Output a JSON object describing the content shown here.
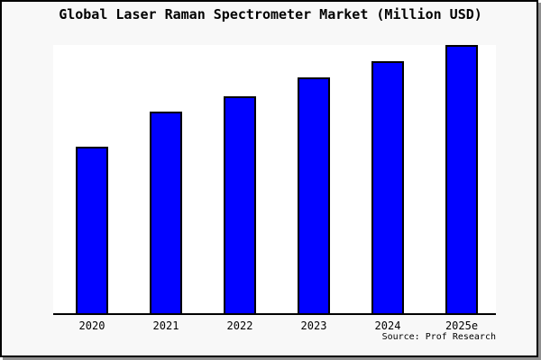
{
  "window": {
    "background": "#f8f8f8",
    "border_color": "#000000",
    "shadow_color": "#8f8f8f"
  },
  "chart": {
    "title": "Global Laser Raman Spectrometer Market (Million USD)",
    "source": "Source: Prof Research",
    "plot_background": "#ffffff",
    "bar_fill": "#0000ff",
    "bar_border": "#000000",
    "axis_color": "#000000"
  },
  "chart_data": {
    "type": "bar",
    "title": "Global Laser Raman Spectrometer Market (Million USD)",
    "categories": [
      "2020",
      "2021",
      "2022",
      "2023",
      "2024",
      "2025e"
    ],
    "values": [
      62,
      75,
      81,
      88,
      94,
      100
    ],
    "xlabel": "",
    "ylabel": "",
    "ylim": [
      0,
      100
    ],
    "grid": false,
    "legend": false,
    "y_axis_visible": false,
    "value_scale_note": "No y-axis scale shown; values are relative bar heights as % of the tallest (2025e) bar.",
    "annotations": [
      "Source: Prof Research"
    ]
  }
}
